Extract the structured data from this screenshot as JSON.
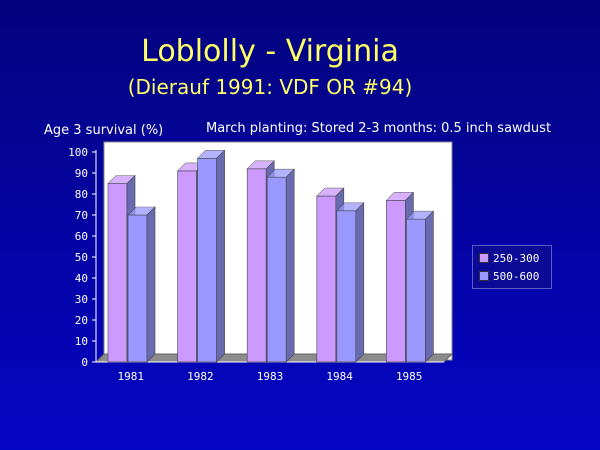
{
  "slide": {
    "title": "Loblolly - Virginia",
    "subtitle": "(Dierauf 1991: VDF OR #94)",
    "annotation": "March planting: Stored 2-3 months: 0.5 inch sawdust"
  },
  "chart_data": {
    "type": "bar",
    "title": "",
    "xlabel": "",
    "ylabel": "Age 3 survival (%)",
    "categories": [
      "1981",
      "1982",
      "1983",
      "1984",
      "1985"
    ],
    "series": [
      {
        "name": "250-300",
        "values": [
          85,
          91,
          92,
          79,
          77
        ]
      },
      {
        "name": "500-600",
        "values": [
          70,
          97,
          88,
          72,
          68
        ]
      }
    ],
    "ylim": [
      0,
      100
    ],
    "yticks": [
      "0",
      "10",
      "20",
      "30",
      "40",
      "50",
      "60",
      "70",
      "80",
      "90",
      "100"
    ],
    "grid": false,
    "legend_position": "right",
    "style": "3d",
    "colors": {
      "series_1": "#cc99ff",
      "series_2": "#9999ff",
      "plot_background": "#ffffff",
      "floor": "#8c8c8c"
    }
  }
}
